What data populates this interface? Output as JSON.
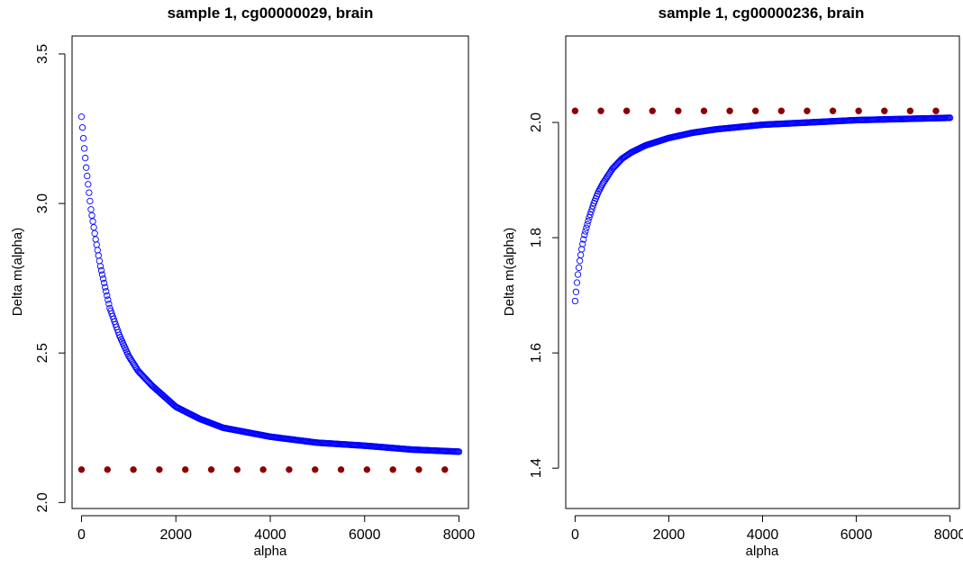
{
  "chart_data": [
    {
      "type": "scatter",
      "title": "sample 1, cg00000029, brain",
      "xlabel": "alpha",
      "ylabel": "Delta m(alpha)",
      "xlim": [
        -200,
        8200
      ],
      "ylim": [
        1.98,
        3.56
      ],
      "x_ticks": [
        0,
        2000,
        4000,
        6000,
        8000
      ],
      "x_tick_labels": [
        "0",
        "2000",
        "4000",
        "6000",
        "8000"
      ],
      "y_ticks": [
        2.0,
        2.5,
        3.0,
        3.5
      ],
      "y_tick_labels": [
        "2.0",
        "2.5",
        "3.0",
        "3.5"
      ],
      "grid": false,
      "series": [
        {
          "marker": "open-circle",
          "color": "#0000ff",
          "x_range": [
            0,
            8000
          ],
          "points": [
            [
              0,
              3.29
            ],
            [
              50,
              3.2
            ],
            [
              100,
              3.12
            ],
            [
              150,
              3.05
            ],
            [
              200,
              2.98
            ],
            [
              300,
              2.88
            ],
            [
              400,
              2.79
            ],
            [
              500,
              2.72
            ],
            [
              600,
              2.65
            ],
            [
              800,
              2.56
            ],
            [
              1000,
              2.49
            ],
            [
              1200,
              2.44
            ],
            [
              1500,
              2.39
            ],
            [
              2000,
              2.32
            ],
            [
              2500,
              2.28
            ],
            [
              3000,
              2.25
            ],
            [
              3500,
              2.235
            ],
            [
              4000,
              2.22
            ],
            [
              4500,
              2.21
            ],
            [
              5000,
              2.2
            ],
            [
              6000,
              2.19
            ],
            [
              7000,
              2.177
            ],
            [
              8000,
              2.17
            ]
          ]
        },
        {
          "marker": "filled-circle",
          "color": "#8b0000",
          "x": [
            0,
            550,
            1100,
            1650,
            2200,
            2750,
            3300,
            3850,
            4400,
            4950,
            5500,
            6050,
            6600,
            7150,
            7700
          ],
          "y": 2.11
        }
      ]
    },
    {
      "type": "scatter",
      "title": "sample 1, cg00000236, brain",
      "xlabel": "alpha",
      "ylabel": "Delta m(alpha)",
      "xlim": [
        -200,
        8200
      ],
      "ylim": [
        1.33,
        2.15
      ],
      "x_ticks": [
        0,
        2000,
        4000,
        6000,
        8000
      ],
      "x_tick_labels": [
        "0",
        "2000",
        "4000",
        "6000",
        "8000"
      ],
      "y_ticks": [
        1.4,
        1.6,
        1.8,
        2.0
      ],
      "y_tick_labels": [
        "1.4",
        "1.6",
        "1.8",
        "2.0"
      ],
      "grid": false,
      "series": [
        {
          "marker": "open-circle",
          "color": "#0000ff",
          "x_range": [
            0,
            8000
          ],
          "points": [
            [
              0,
              1.69
            ],
            [
              50,
              1.73
            ],
            [
              100,
              1.76
            ],
            [
              150,
              1.785
            ],
            [
              200,
              1.805
            ],
            [
              300,
              1.835
            ],
            [
              400,
              1.86
            ],
            [
              500,
              1.88
            ],
            [
              600,
              1.895
            ],
            [
              800,
              1.92
            ],
            [
              1000,
              1.937
            ],
            [
              1200,
              1.948
            ],
            [
              1500,
              1.96
            ],
            [
              2000,
              1.973
            ],
            [
              2500,
              1.982
            ],
            [
              3000,
              1.988
            ],
            [
              3500,
              1.992
            ],
            [
              4000,
              1.996
            ],
            [
              5000,
              2.0
            ],
            [
              6000,
              2.004
            ],
            [
              7000,
              2.006
            ],
            [
              8000,
              2.008
            ]
          ]
        },
        {
          "marker": "filled-circle",
          "color": "#8b0000",
          "x": [
            0,
            550,
            1100,
            1650,
            2200,
            2750,
            3300,
            3850,
            4400,
            4950,
            5500,
            6050,
            6600,
            7150,
            7700
          ],
          "y": 2.02
        }
      ]
    }
  ]
}
